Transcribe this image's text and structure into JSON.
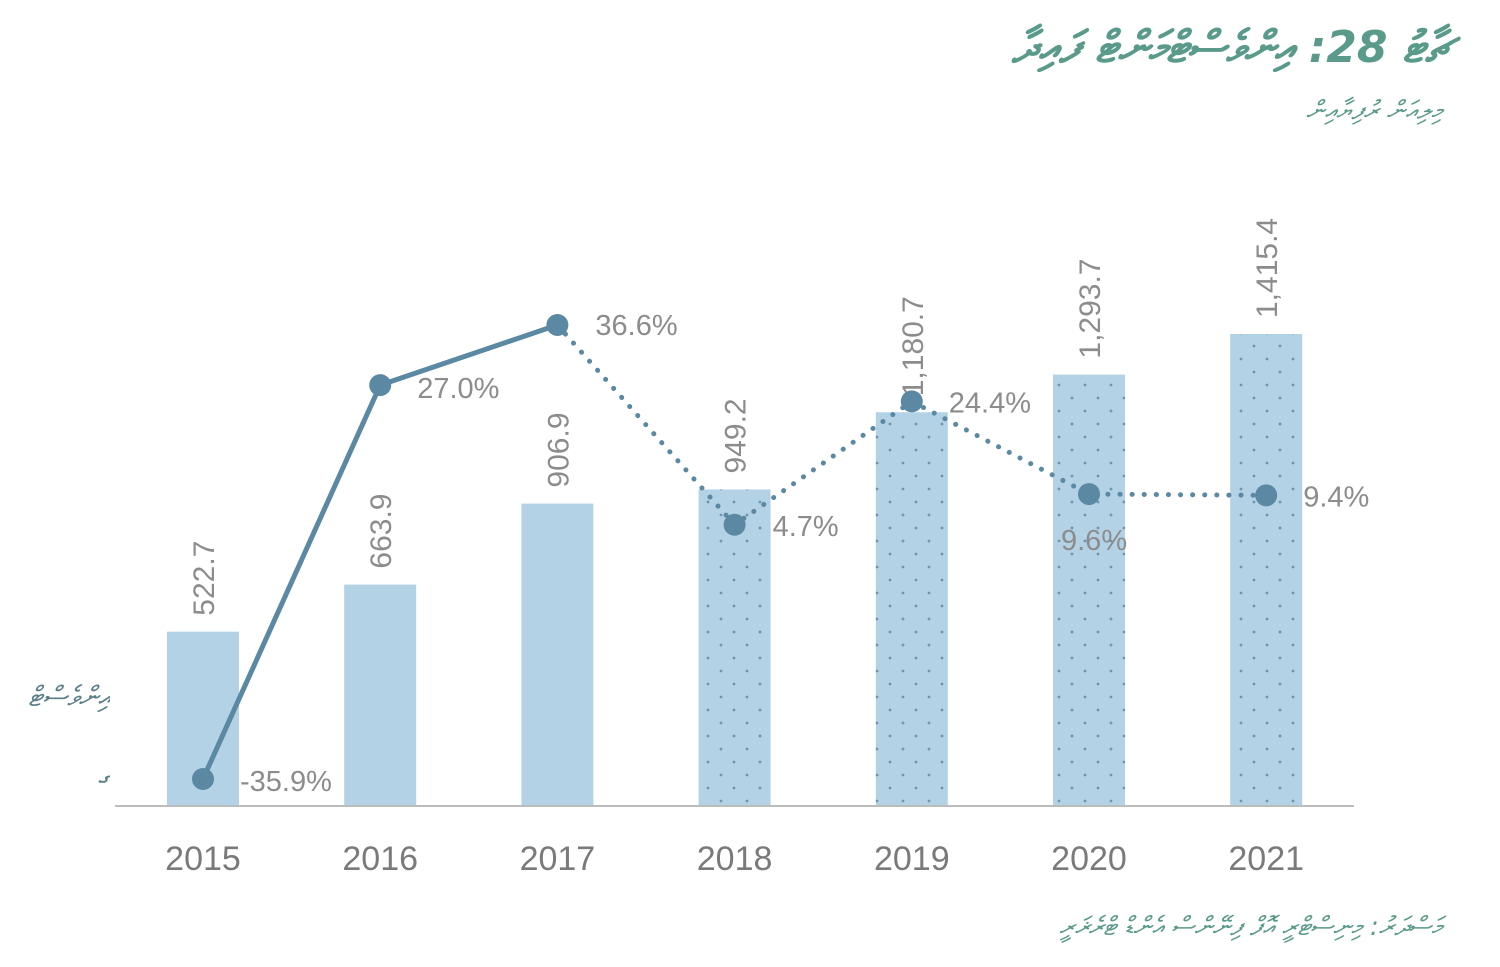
{
  "title": "ޗާޓު 28: އިންވެސްޓްމަންޓް ފައިދާ",
  "subtitle": "މިލިއަން ރުފިޔާއިން",
  "source": "މަސްދަރު: މިނިސްޓްރީ އޮފް ފިނޭންސް އެންޑް ޓްރެޜަރީ",
  "legend_fragments": [
    "އިންވެސްޓް",
    "ގ"
  ],
  "colors": {
    "bar": "#b4d2e6",
    "bar_dots": "#6f95ab",
    "line": "#5b88a2",
    "axis": "#bcbcbc",
    "text": "#8c8c8c",
    "title": "#5a9a8b"
  },
  "chart_data": {
    "type": "bar",
    "categories": [
      "2015",
      "2016",
      "2017",
      "2018",
      "2019",
      "2020",
      "2021"
    ],
    "series": [
      {
        "values": [
          522.7,
          663.9,
          906.9,
          949.2,
          1180.7,
          1293.7,
          1415.4
        ],
        "labels": [
          "522.7",
          "663.9",
          "906.9",
          "949.2",
          "1,180.7",
          "1,293.7",
          "1,415.4"
        ],
        "projected_from_index": 3
      },
      {
        "type": "line",
        "values": [
          -35.9,
          27.0,
          36.6,
          4.7,
          24.4,
          9.6,
          9.4
        ],
        "labels": [
          "-35.9%",
          "27.0%",
          "36.6%",
          "4.7%",
          "24.4%",
          "9.6%",
          "9.4%"
        ],
        "projected_from_index": 2
      }
    ],
    "ylim": [
      0,
      1600
    ],
    "y2lim": [
      -40,
      40
    ],
    "grid": false
  }
}
